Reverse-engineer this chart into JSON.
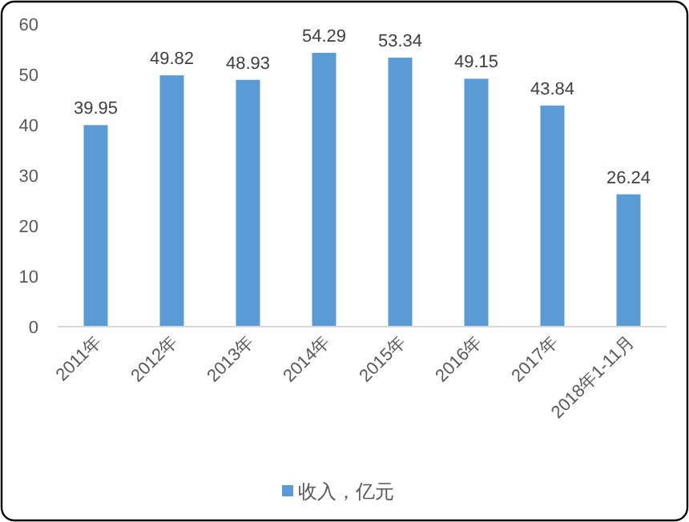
{
  "chart_data": {
    "type": "bar",
    "categories": [
      "2011年",
      "2012年",
      "2013年",
      "2014年",
      "2015年",
      "2016年",
      "2017年",
      "2018年1-11月"
    ],
    "series": [
      {
        "name": "收入，亿元",
        "color": "#5b9bd5",
        "values": [
          39.95,
          49.82,
          48.93,
          54.29,
          53.34,
          49.15,
          43.84,
          26.24
        ]
      }
    ],
    "ylim": [
      0,
      60
    ],
    "yticks": [
      0,
      10,
      20,
      30,
      40,
      50,
      60
    ],
    "grid": false,
    "legend": "bottom",
    "data_labels": true
  }
}
